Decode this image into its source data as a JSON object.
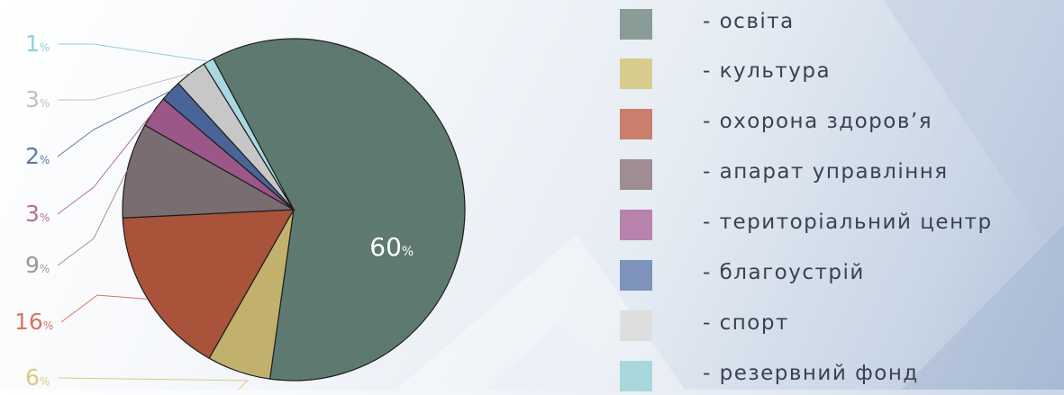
{
  "chart_data": {
    "type": "pie",
    "categories": [
      "освіта",
      "культура",
      "охорона здоров’я",
      "апарат управління",
      "територіальний центр",
      "благоустрій",
      "спорт",
      "резервний фонд"
    ],
    "values": [
      60,
      6,
      16,
      9,
      3,
      2,
      3,
      1
    ],
    "labels": [
      "60",
      "6",
      "16",
      "9",
      "3",
      "2",
      "3",
      "1"
    ],
    "unit": "%",
    "colors": [
      "#5e7a70",
      "#c2b16d",
      "#a8533a",
      "#7a6d72",
      "#9b5788",
      "#4a6497",
      "#c7c7c7",
      "#a8d8e0"
    ],
    "label_colors": [
      "#ffffff",
      "#d9cb82",
      "#d4765e",
      "#a0959a",
      "#b06f9a",
      "#5f78a8",
      "#c0c0c0",
      "#8fd0de"
    ]
  },
  "legend": {
    "items": [
      {
        "label": "- освіта",
        "color": "#8a9c97"
      },
      {
        "label": "- культура",
        "color": "#d8cb8e"
      },
      {
        "label": "- охорона здоров’я",
        "color": "#c97f6b"
      },
      {
        "label": "- апарат управління",
        "color": "#9e8e93"
      },
      {
        "label": "- територіальний центр",
        "color": "#b783ac"
      },
      {
        "label": "- благоустрій",
        "color": "#7d93bc"
      },
      {
        "label": "- спорт",
        "color": "#dedede"
      },
      {
        "label": "- резервний фонд",
        "color": "#a9d7de"
      }
    ]
  }
}
